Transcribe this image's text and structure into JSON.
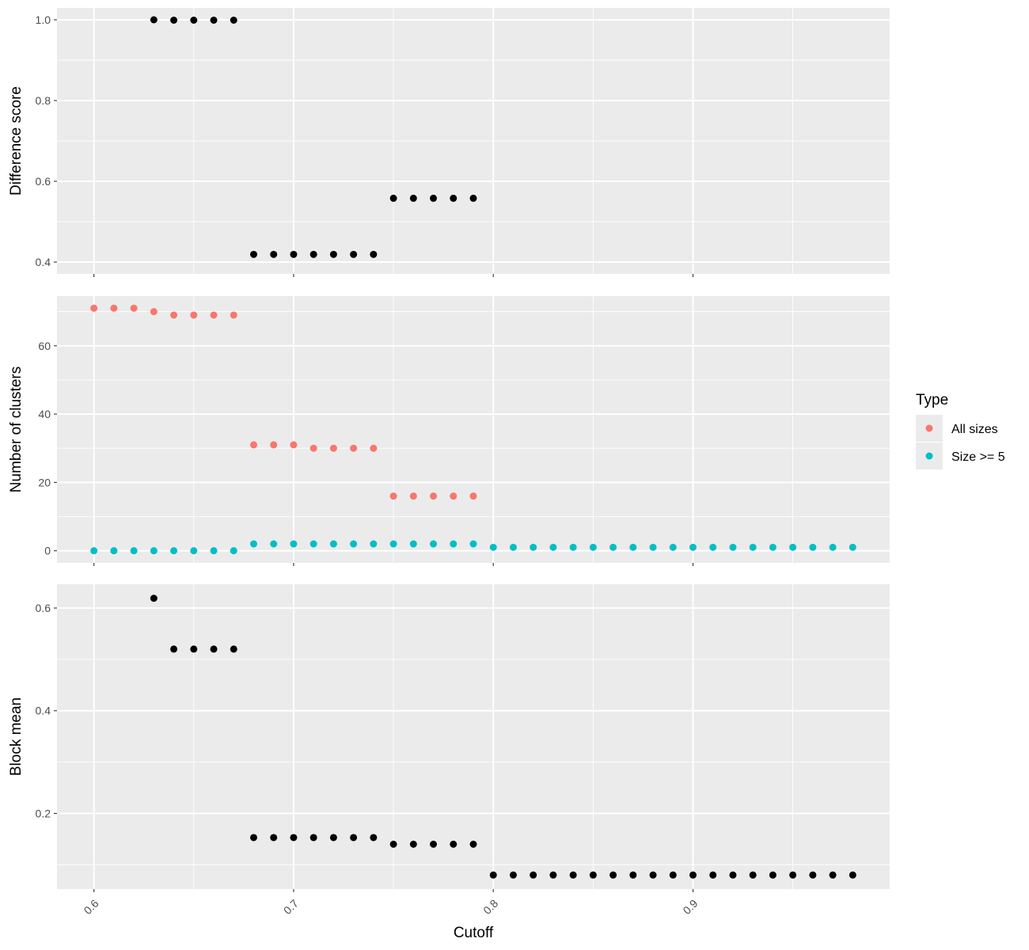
{
  "chart_data": {
    "type": "scatter",
    "xlabel": "Cutoff",
    "x_ticks": [
      "0.6",
      "0.7",
      "0.8",
      "0.9"
    ],
    "xlim": [
      0.5815,
      0.9985
    ],
    "grid": true,
    "legend": {
      "title": "Type",
      "placement": "right",
      "entries": [
        {
          "label": "All sizes",
          "color": "#F8766D"
        },
        {
          "label": "Size >= 5",
          "color": "#00BFC4"
        }
      ]
    },
    "colors": {
      "panel_bg": "#EBEBEB",
      "grid": "#FFFFFF",
      "point": "#000000"
    },
    "panels": [
      {
        "ylabel": "Difference score",
        "ylim": [
          0.3706,
          1.0294
        ],
        "y_ticks": [
          {
            "value": 0.4,
            "label": "0.4"
          },
          {
            "value": 0.6,
            "label": "0.6"
          },
          {
            "value": 0.8,
            "label": "0.8"
          },
          {
            "value": 1.0,
            "label": "1.0"
          }
        ],
        "series": [
          {
            "color": "#000000",
            "x": [
              0.63,
              0.64,
              0.65,
              0.66,
              0.67,
              0.68,
              0.69,
              0.7,
              0.71,
              0.72,
              0.73,
              0.74,
              0.75,
              0.76,
              0.77,
              0.78,
              0.79
            ],
            "y": [
              1.0,
              0.999,
              0.999,
              0.999,
              0.999,
              0.419,
              0.419,
              0.419,
              0.419,
              0.419,
              0.419,
              0.419,
              0.558,
              0.558,
              0.558,
              0.558,
              0.558
            ]
          }
        ]
      },
      {
        "ylabel": "Number of clusters",
        "ylim": [
          -3.55,
          74.55
        ],
        "y_ticks": [
          {
            "value": 0,
            "label": "0"
          },
          {
            "value": 20,
            "label": "20"
          },
          {
            "value": 40,
            "label": "40"
          },
          {
            "value": 60,
            "label": "60"
          }
        ],
        "series": [
          {
            "name": "All sizes",
            "color": "#F8766D",
            "x": [
              0.6,
              0.61,
              0.62,
              0.63,
              0.64,
              0.65,
              0.66,
              0.67,
              0.68,
              0.69,
              0.7,
              0.71,
              0.72,
              0.73,
              0.74,
              0.75,
              0.76,
              0.77,
              0.78,
              0.79
            ],
            "y": [
              71,
              71,
              71,
              70,
              69,
              69,
              69,
              69,
              31,
              31,
              31,
              30,
              30,
              30,
              30,
              16,
              16,
              16,
              16,
              16
            ]
          },
          {
            "name": "Size >= 5",
            "color": "#00BFC4",
            "x": [
              0.6,
              0.61,
              0.62,
              0.63,
              0.64,
              0.65,
              0.66,
              0.67,
              0.68,
              0.69,
              0.7,
              0.71,
              0.72,
              0.73,
              0.74,
              0.75,
              0.76,
              0.77,
              0.78,
              0.79,
              0.8,
              0.81,
              0.82,
              0.83,
              0.84,
              0.85,
              0.86,
              0.87,
              0.88,
              0.89,
              0.9,
              0.91,
              0.92,
              0.93,
              0.94,
              0.95,
              0.96,
              0.97,
              0.98
            ],
            "y": [
              0,
              0,
              0,
              0,
              0,
              0,
              0,
              0,
              2,
              2,
              2,
              2,
              2,
              2,
              2,
              2,
              2,
              2,
              2,
              2,
              1,
              1,
              1,
              1,
              1,
              1,
              1,
              1,
              1,
              1,
              1,
              1,
              1,
              1,
              1,
              1,
              1,
              1,
              1
            ]
          }
        ]
      },
      {
        "ylabel": "Block mean",
        "ylim": [
          0.0527,
          0.6463
        ],
        "y_ticks": [
          {
            "value": 0.2,
            "label": "0.2"
          },
          {
            "value": 0.4,
            "label": "0.4"
          },
          {
            "value": 0.6,
            "label": "0.6"
          }
        ],
        "series": [
          {
            "color": "#000000",
            "x": [
              0.63,
              0.64,
              0.65,
              0.66,
              0.67,
              0.68,
              0.69,
              0.7,
              0.71,
              0.72,
              0.73,
              0.74,
              0.75,
              0.76,
              0.77,
              0.78,
              0.79,
              0.8,
              0.81,
              0.82,
              0.83,
              0.84,
              0.85,
              0.86,
              0.87,
              0.88,
              0.89,
              0.9,
              0.91,
              0.92,
              0.93,
              0.94,
              0.95,
              0.96,
              0.97,
              0.98
            ],
            "y": [
              0.619,
              0.52,
              0.52,
              0.52,
              0.52,
              0.153,
              0.153,
              0.153,
              0.153,
              0.153,
              0.153,
              0.153,
              0.14,
              0.14,
              0.14,
              0.14,
              0.14,
              0.08,
              0.08,
              0.08,
              0.08,
              0.08,
              0.08,
              0.08,
              0.08,
              0.08,
              0.08,
              0.08,
              0.08,
              0.08,
              0.08,
              0.08,
              0.08,
              0.08,
              0.08,
              0.08
            ]
          }
        ]
      }
    ]
  }
}
